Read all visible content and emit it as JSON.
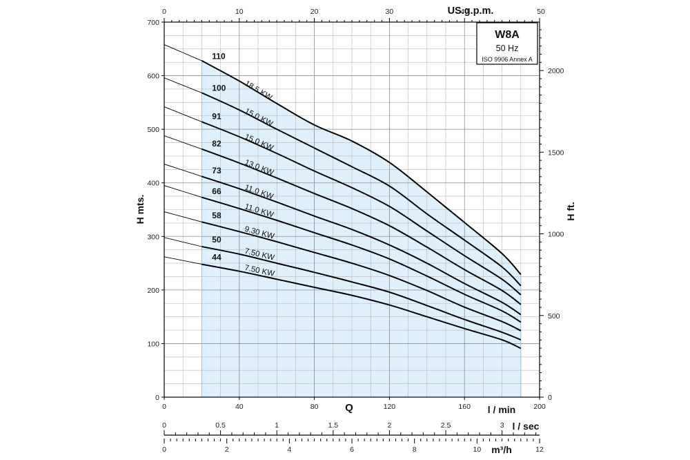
{
  "chart_data": {
    "type": "line",
    "model_box": {
      "model": "W8A",
      "frequency": "50 Hz",
      "standard": "ISO 9906 Annex A"
    },
    "axes": {
      "x_bottom": {
        "title": "l / min",
        "range": [
          0,
          200
        ],
        "ticks": [
          "0",
          "40",
          "80",
          "120",
          "160",
          "200"
        ]
      },
      "x_top": {
        "title": "US.g.p.m.",
        "range": [
          0,
          50
        ],
        "ticks": [
          "0",
          "10",
          "20",
          "30",
          "40",
          "50"
        ]
      },
      "y_left": {
        "title": "H mts.",
        "range": [
          0,
          700
        ],
        "ticks": [
          "0",
          "100",
          "200",
          "300",
          "400",
          "500",
          "600",
          "700"
        ]
      },
      "y_right": {
        "title": "H ft.",
        "range": [
          0,
          2296.6
        ],
        "ticks": [
          "0",
          "500",
          "1000",
          "1500",
          "2000"
        ]
      },
      "x_sec": {
        "title": "l / sec",
        "range": [
          0,
          3.333
        ],
        "ticks": [
          "0",
          "0.5",
          "1",
          "1.5",
          "2",
          "2.5",
          "3"
        ]
      },
      "x_m3h": {
        "title": "m³/h",
        "range": [
          0,
          12
        ],
        "ticks": [
          "0",
          "2",
          "4",
          "6",
          "8",
          "10",
          "12"
        ]
      },
      "q_label": "Q"
    },
    "grid": true,
    "operating_range": {
      "x_from": 20,
      "x_to": 190
    },
    "x": [
      0,
      20,
      40,
      60,
      80,
      100,
      120,
      140,
      160,
      180,
      190
    ],
    "series": [
      {
        "name": "110",
        "power": "18.5 KW",
        "values": [
          658,
          628,
          590,
          548,
          508,
          478,
          438,
          383,
          326,
          268,
          229
        ]
      },
      {
        "name": "100",
        "power": "15.0 KW",
        "values": [
          596,
          568,
          536,
          500,
          465,
          430,
          394,
          342,
          293,
          243,
          208
        ]
      },
      {
        "name": "91",
        "power": "15.0 KW",
        "values": [
          542,
          514,
          486,
          455,
          422,
          391,
          356,
          310,
          264,
          220,
          191
        ]
      },
      {
        "name": "82",
        "power": "13.0 KW",
        "values": [
          488,
          463,
          437,
          409,
          380,
          352,
          320,
          280,
          238,
          199,
          173
        ]
      },
      {
        "name": "73",
        "power": "11.0 KW",
        "values": [
          435,
          412,
          389,
          364,
          338,
          313,
          284,
          250,
          212,
          177,
          154
        ]
      },
      {
        "name": "66",
        "power": "11.0 KW",
        "values": [
          395,
          373,
          352,
          330,
          307,
          284,
          258,
          226,
          192,
          161,
          140
        ]
      },
      {
        "name": "58",
        "power": "9.30 KW",
        "values": [
          346,
          327,
          309,
          290,
          270,
          250,
          227,
          199,
          168,
          141,
          124
        ]
      },
      {
        "name": "50",
        "power": "7.50 KW",
        "values": [
          298,
          281,
          267,
          250,
          233,
          215,
          196,
          171,
          145,
          121,
          107
        ]
      },
      {
        "name": "44",
        "power": "7.50 KW",
        "values": [
          262,
          248,
          235,
          220,
          205,
          190,
          172,
          150,
          128,
          107,
          91
        ]
      }
    ]
  }
}
